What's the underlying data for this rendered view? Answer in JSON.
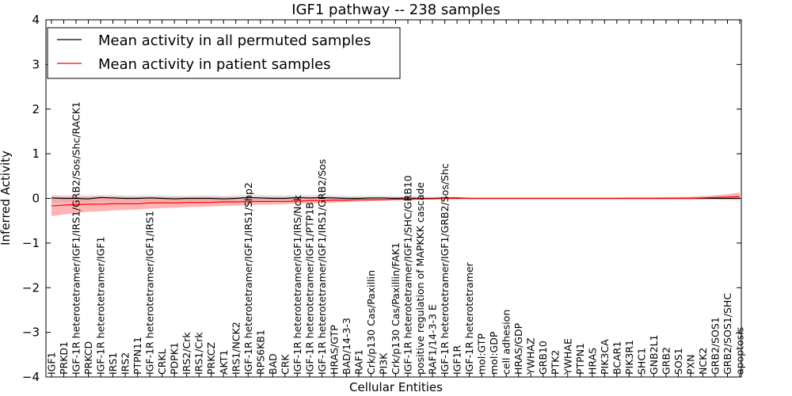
{
  "chart_data": {
    "type": "line",
    "title": "IGF1 pathway -- 238 samples",
    "xlabel": "Cellular Entities",
    "ylabel": "Inferred Activity",
    "ylim": [
      -4,
      4
    ],
    "yticks": [
      -4,
      -3,
      -2,
      -1,
      0,
      1,
      2,
      3,
      4
    ],
    "ytick_labels": [
      "−4",
      "−3",
      "−2",
      "−1",
      "0",
      "1",
      "2",
      "3",
      "4"
    ],
    "grid": false,
    "legend_position": "top-left",
    "colors": {
      "permuted": "#000000",
      "patient": "#ff0000",
      "permuted_band": "#d8d8d8",
      "patient_band": "#ff7777"
    },
    "categories": [
      "IGF1",
      "PRKD1",
      "IGF-1R heterotetramer/IGF1/IRS1/GRB2/Sos/Shc/RACK1",
      "PRKCD",
      "IGF-1R heterotetramer/IGF1",
      "IRS1",
      "IRS2",
      "PTPN11",
      "IGF-1R heterotetramer/IGF1/IRS1",
      "CRKL",
      "PDPK1",
      "IRS2/Crk",
      "IRS1/Crk",
      "PRKCZ",
      "AKT1",
      "IRS1/NCK2",
      "IGF-1R heterotetramer/IGF1/IRS1/Shp2",
      "RPS6KB1",
      "BAD",
      "CRK",
      "IGF-1R heterotetramer/IGF1/IRS/Nck",
      "IGF-1R heterotetramer/IGF1/PTP1B",
      "IGF-1R heterotetramer/IGF1/IRS1/GRB2/Sos",
      "HRAS/GTP",
      "BAD/14-3-3",
      "RAF1",
      "Crk/p130 Cas/Paxillin",
      "PI3K",
      "Crk/p130 Cas/Paxillin/FAK1",
      "IGF-1R heterotetramer/IGF1/SHC/GRB10",
      "positive regulation of MAPKKK cascade",
      "RAF1/14-3-3 E",
      "IGF-1R heterotetramer/IGF1/GRB2/Sos/Shc",
      "IGF1R",
      "IGF-1R heterotetramer",
      "mol:GTP",
      "mol:GDP",
      "cell adhesion",
      "HRAS/GDP",
      "YWHAZ",
      "GRB10",
      "PTK2",
      "YWHAE",
      "PTPN1",
      "HRAS",
      "PIK3CA",
      "BCAR1",
      "PIK3R1",
      "SHC1",
      "GNB2L1",
      "GRB2",
      "SOS1",
      "PXN",
      "NCK2",
      "GRB2/SOS1",
      "GRB2/SOS1/SHC",
      "apoptosis"
    ],
    "series": [
      {
        "name": "Mean activity in all permuted samples",
        "values": [
          0.01,
          0.0,
          0.0,
          -0.01,
          0.02,
          0.01,
          0.0,
          0.0,
          0.01,
          0.0,
          -0.01,
          0.0,
          0.0,
          0.0,
          -0.01,
          0.0,
          0.02,
          0.01,
          0.0,
          0.0,
          0.02,
          0.01,
          0.02,
          0.01,
          0.0,
          0.0,
          0.01,
          0.01,
          0.0,
          0.01,
          0.0,
          0.0,
          0.01,
          0.01,
          0.0,
          0.0,
          0.0,
          0.0,
          0.0,
          0.0,
          0.0,
          0.0,
          0.0,
          0.0,
          0.0,
          0.0,
          0.0,
          0.0,
          0.0,
          0.0,
          0.0,
          0.0,
          0.0,
          0.0,
          0.0,
          0.0,
          0.0
        ],
        "lower": [
          -0.1,
          -0.08,
          -0.08,
          -0.08,
          -0.07,
          -0.07,
          -0.07,
          -0.07,
          -0.07,
          -0.07,
          -0.07,
          -0.07,
          -0.07,
          -0.07,
          -0.07,
          -0.07,
          -0.06,
          -0.06,
          -0.06,
          -0.06,
          -0.06,
          -0.06,
          -0.05,
          -0.05,
          -0.05,
          -0.05,
          -0.05,
          -0.04,
          -0.04,
          -0.03,
          -0.03,
          -0.03,
          -0.02,
          -0.02,
          -0.02,
          -0.02,
          -0.02,
          -0.02,
          -0.02,
          -0.02,
          -0.02,
          -0.02,
          -0.02,
          -0.02,
          -0.02,
          -0.02,
          -0.02,
          -0.02,
          -0.02,
          -0.02,
          -0.02,
          -0.02,
          -0.02,
          -0.03,
          -0.03,
          -0.04,
          -0.05
        ],
        "upper": [
          0.08,
          0.07,
          0.07,
          0.07,
          0.08,
          0.08,
          0.07,
          0.07,
          0.07,
          0.07,
          0.06,
          0.06,
          0.07,
          0.07,
          0.06,
          0.07,
          0.08,
          0.08,
          0.07,
          0.07,
          0.09,
          0.08,
          0.08,
          0.07,
          0.06,
          0.06,
          0.06,
          0.06,
          0.05,
          0.05,
          0.04,
          0.04,
          0.04,
          0.03,
          0.02,
          0.02,
          0.02,
          0.02,
          0.02,
          0.02,
          0.02,
          0.02,
          0.02,
          0.02,
          0.02,
          0.02,
          0.02,
          0.02,
          0.02,
          0.02,
          0.02,
          0.02,
          0.02,
          0.03,
          0.03,
          0.04,
          0.05
        ]
      },
      {
        "name": "Mean activity in patient samples",
        "values": [
          -0.17,
          -0.15,
          -0.14,
          -0.13,
          -0.13,
          -0.12,
          -0.12,
          -0.12,
          -0.1,
          -0.1,
          -0.1,
          -0.09,
          -0.09,
          -0.09,
          -0.08,
          -0.08,
          -0.07,
          -0.07,
          -0.07,
          -0.07,
          -0.06,
          -0.05,
          -0.05,
          -0.04,
          -0.04,
          -0.03,
          -0.03,
          -0.03,
          -0.02,
          -0.02,
          -0.01,
          -0.01,
          0.0,
          0.0,
          0.0,
          0.0,
          0.0,
          0.0,
          0.0,
          0.0,
          0.0,
          0.0,
          0.0,
          0.0,
          0.0,
          0.0,
          0.0,
          0.0,
          0.0,
          0.0,
          0.0,
          0.0,
          0.0,
          0.01,
          0.02,
          0.03,
          0.04
        ],
        "lower": [
          -0.4,
          -0.36,
          -0.33,
          -0.3,
          -0.29,
          -0.27,
          -0.26,
          -0.25,
          -0.23,
          -0.22,
          -0.21,
          -0.2,
          -0.19,
          -0.18,
          -0.17,
          -0.16,
          -0.15,
          -0.14,
          -0.14,
          -0.13,
          -0.12,
          -0.11,
          -0.1,
          -0.09,
          -0.08,
          -0.07,
          -0.06,
          -0.05,
          -0.04,
          -0.04,
          -0.03,
          -0.02,
          -0.02,
          -0.02,
          -0.01,
          -0.01,
          -0.01,
          -0.01,
          -0.01,
          -0.01,
          -0.01,
          -0.01,
          -0.01,
          -0.01,
          -0.01,
          -0.01,
          -0.01,
          -0.01,
          -0.01,
          -0.01,
          -0.01,
          -0.01,
          -0.01,
          -0.01,
          0.0,
          0.0,
          0.0
        ],
        "upper": [
          0.04,
          0.04,
          0.04,
          0.04,
          0.04,
          0.04,
          0.03,
          0.03,
          0.04,
          0.03,
          0.03,
          0.03,
          0.03,
          0.03,
          0.03,
          0.03,
          0.03,
          0.03,
          0.03,
          0.03,
          0.03,
          0.03,
          0.03,
          0.03,
          0.02,
          0.02,
          0.02,
          0.02,
          0.02,
          0.02,
          0.01,
          0.01,
          0.01,
          0.01,
          0.01,
          0.01,
          0.01,
          0.01,
          0.01,
          0.01,
          0.01,
          0.01,
          0.01,
          0.01,
          0.01,
          0.01,
          0.01,
          0.02,
          0.02,
          0.02,
          0.03,
          0.03,
          0.04,
          0.05,
          0.07,
          0.09,
          0.13
        ]
      }
    ]
  }
}
